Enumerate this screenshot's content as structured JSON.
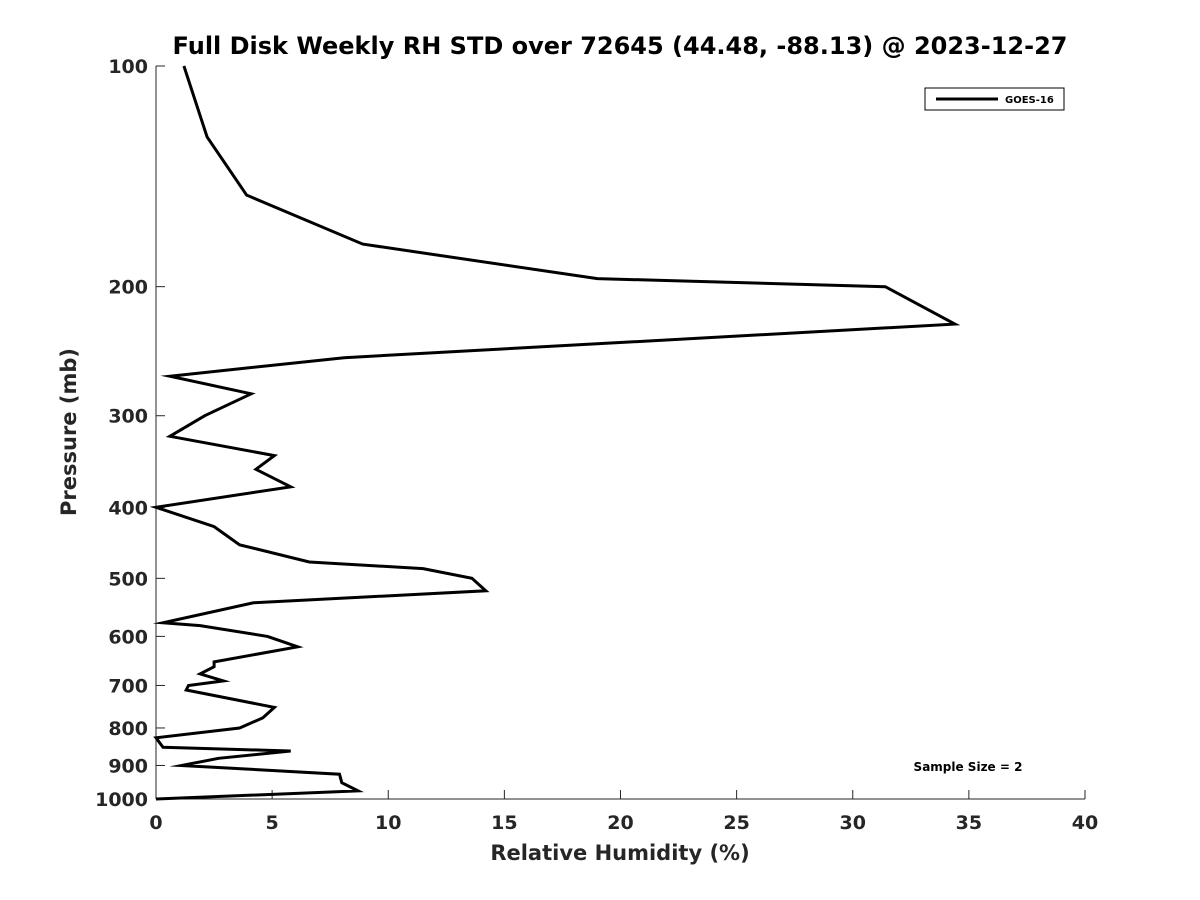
{
  "chart_data": {
    "type": "line",
    "title": "Full Disk Weekly RH STD over 72645 (44.48, -88.13) @ 2023-12-27",
    "xlabel": "Relative Humidity (%)",
    "ylabel": "Pressure (mb)",
    "xlim": [
      0,
      40
    ],
    "ylim": [
      100,
      1000
    ],
    "yscale": "log",
    "yreversed": true,
    "xticks": [
      0,
      5,
      10,
      15,
      20,
      25,
      30,
      35,
      40
    ],
    "yticks": [
      100,
      200,
      300,
      400,
      500,
      600,
      700,
      800,
      900,
      1000
    ],
    "legend_position": "top-right",
    "annotation": "Sample Size = 2",
    "series": [
      {
        "name": "GOES-16",
        "color": "#000000",
        "points": [
          [
            1.2,
            100
          ],
          [
            2.2,
            125
          ],
          [
            3.9,
            150
          ],
          [
            8.9,
            175
          ],
          [
            19.0,
            195
          ],
          [
            31.4,
            200
          ],
          [
            34.4,
            225
          ],
          [
            8.1,
            250
          ],
          [
            0.6,
            265
          ],
          [
            4.1,
            280
          ],
          [
            2.1,
            300
          ],
          [
            0.6,
            320
          ],
          [
            5.1,
            340
          ],
          [
            4.3,
            355
          ],
          [
            5.8,
            375
          ],
          [
            0.0,
            400
          ],
          [
            2.5,
            425
          ],
          [
            3.6,
            450
          ],
          [
            6.6,
            475
          ],
          [
            11.5,
            485
          ],
          [
            13.6,
            500
          ],
          [
            14.2,
            520
          ],
          [
            4.2,
            540
          ],
          [
            0.3,
            575
          ],
          [
            1.9,
            580
          ],
          [
            4.8,
            600
          ],
          [
            6.1,
            620
          ],
          [
            2.5,
            650
          ],
          [
            2.5,
            660
          ],
          [
            1.9,
            675
          ],
          [
            2.9,
            690
          ],
          [
            1.4,
            700
          ],
          [
            1.3,
            710
          ],
          [
            5.1,
            750
          ],
          [
            4.6,
            775
          ],
          [
            3.6,
            800
          ],
          [
            0.0,
            825
          ],
          [
            0.3,
            850
          ],
          [
            5.8,
            860
          ],
          [
            2.7,
            880
          ],
          [
            1.1,
            900
          ],
          [
            7.9,
            925
          ],
          [
            8.0,
            950
          ],
          [
            8.7,
            975
          ],
          [
            0.0,
            1000
          ]
        ]
      }
    ]
  }
}
